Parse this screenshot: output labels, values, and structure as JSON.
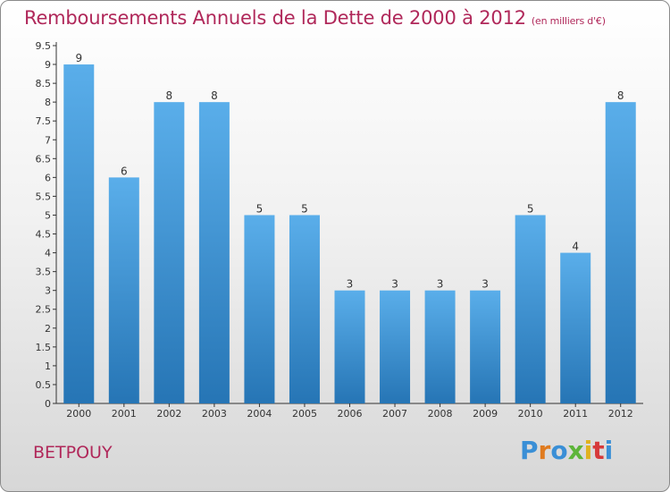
{
  "header": {
    "title": "Remboursements Annuels de la Dette de 2000 à 2012",
    "subtitle": "(en milliers d'€)"
  },
  "footer": {
    "commune": "BETPOUY",
    "logo": "Proxiti"
  },
  "colors": {
    "title": "#b0285a",
    "bar_top": "#5aaeea",
    "bar_bottom": "#2675b5",
    "logo": [
      "#3a8fd6",
      "#e07b1f",
      "#3a8fd6",
      "#5db53a",
      "#e0b21f",
      "#d63a3a",
      "#3a8fd6"
    ]
  },
  "chart_data": {
    "type": "bar",
    "categories": [
      "2000",
      "2001",
      "2002",
      "2003",
      "2004",
      "2005",
      "2006",
      "2007",
      "2008",
      "2009",
      "2010",
      "2011",
      "2012"
    ],
    "values": [
      9,
      6,
      8,
      8,
      5,
      5,
      3,
      3,
      3,
      3,
      5,
      4,
      8
    ],
    "data_labels": [
      "9",
      "6",
      "8",
      "8",
      "5",
      "5",
      "3",
      "3",
      "3",
      "3",
      "5",
      "4",
      "8"
    ],
    "yticks": [
      "0",
      "0.5",
      "1",
      "1.5",
      "2",
      "2.5",
      "3",
      "3.5",
      "4",
      "4.5",
      "5",
      "5.5",
      "6",
      "6.5",
      "7",
      "7.5",
      "8",
      "8.5",
      "9",
      "9.5"
    ],
    "ylim": [
      0,
      9.5
    ],
    "grid": false,
    "legend": "none"
  }
}
